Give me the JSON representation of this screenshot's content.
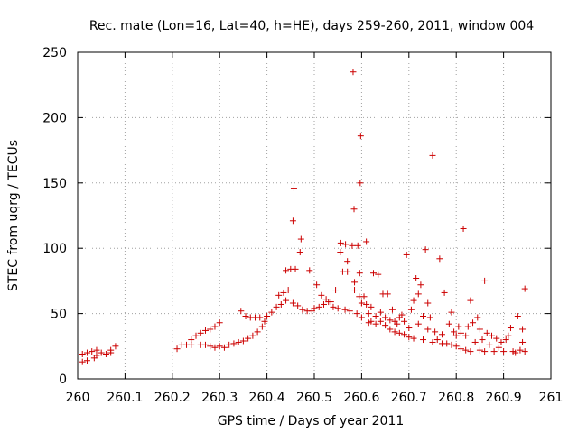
{
  "chart_data": {
    "type": "scatter",
    "title": "Rec. mate (Lon=16, Lat=40, h=HE), days 259-260, 2011, window 004",
    "xlabel": "GPS time / Days of year 2011",
    "ylabel": "STEC from uqrg / TECUs",
    "xlim": [
      260,
      261
    ],
    "ylim": [
      0,
      250
    ],
    "xticks": [
      260,
      260.1,
      260.2,
      260.3,
      260.4,
      260.5,
      260.6,
      260.7,
      260.8,
      260.9,
      261
    ],
    "xtick_labels": [
      "260",
      "260.1",
      "260.2",
      "260.3",
      "260.4",
      "260.5",
      "260.6",
      "260.7",
      "260.8",
      "260.9",
      "261"
    ],
    "yticks": [
      0,
      50,
      100,
      150,
      200,
      250
    ],
    "ytick_labels": [
      "0",
      "50",
      "100",
      "150",
      "200",
      "250"
    ],
    "grid": true,
    "marker": "+",
    "marker_color": "#cc0000",
    "series": [
      {
        "name": "STEC",
        "points": [
          [
            260.01,
            19
          ],
          [
            260.01,
            13
          ],
          [
            260.02,
            20
          ],
          [
            260.02,
            14
          ],
          [
            260.03,
            21
          ],
          [
            260.035,
            16
          ],
          [
            260.04,
            22
          ],
          [
            260.04,
            18
          ],
          [
            260.05,
            20
          ],
          [
            260.06,
            19
          ],
          [
            260.07,
            22
          ],
          [
            260.07,
            20
          ],
          [
            260.08,
            25
          ],
          [
            260.21,
            23
          ],
          [
            260.22,
            26
          ],
          [
            260.23,
            26
          ],
          [
            260.24,
            26
          ],
          [
            260.24,
            30
          ],
          [
            260.25,
            33
          ],
          [
            260.26,
            26
          ],
          [
            260.26,
            35
          ],
          [
            260.27,
            37
          ],
          [
            260.27,
            26
          ],
          [
            260.28,
            25
          ],
          [
            260.28,
            38
          ],
          [
            260.29,
            24
          ],
          [
            260.29,
            40
          ],
          [
            260.3,
            43
          ],
          [
            260.3,
            25
          ],
          [
            260.31,
            24
          ],
          [
            260.32,
            26
          ],
          [
            260.33,
            27
          ],
          [
            260.34,
            28
          ],
          [
            260.345,
            52
          ],
          [
            260.35,
            29
          ],
          [
            260.355,
            48
          ],
          [
            260.36,
            31
          ],
          [
            260.365,
            47
          ],
          [
            260.37,
            33
          ],
          [
            260.375,
            47
          ],
          [
            260.38,
            36
          ],
          [
            260.385,
            47
          ],
          [
            260.39,
            40
          ],
          [
            260.395,
            44
          ],
          [
            260.4,
            48
          ],
          [
            260.41,
            51
          ],
          [
            260.42,
            55
          ],
          [
            260.425,
            64
          ],
          [
            260.43,
            57
          ],
          [
            260.435,
            66
          ],
          [
            260.44,
            60
          ],
          [
            260.44,
            83
          ],
          [
            260.445,
            68
          ],
          [
            260.45,
            84
          ],
          [
            260.455,
            58
          ],
          [
            260.455,
            121
          ],
          [
            260.457,
            146
          ],
          [
            260.46,
            84
          ],
          [
            260.465,
            56
          ],
          [
            260.47,
            97
          ],
          [
            260.472,
            107
          ],
          [
            260.475,
            53
          ],
          [
            260.485,
            52
          ],
          [
            260.49,
            83
          ],
          [
            260.495,
            52
          ],
          [
            260.5,
            54
          ],
          [
            260.505,
            72
          ],
          [
            260.51,
            55
          ],
          [
            260.515,
            64
          ],
          [
            260.52,
            57
          ],
          [
            260.525,
            61
          ],
          [
            260.53,
            59
          ],
          [
            260.535,
            59
          ],
          [
            260.54,
            55
          ],
          [
            260.545,
            68
          ],
          [
            260.55,
            54
          ],
          [
            260.555,
            97
          ],
          [
            260.556,
            104
          ],
          [
            260.56,
            82
          ],
          [
            260.565,
            53
          ],
          [
            260.566,
            103
          ],
          [
            260.57,
            82
          ],
          [
            260.57,
            90
          ],
          [
            260.575,
            52
          ],
          [
            260.58,
            102
          ],
          [
            260.582,
            235
          ],
          [
            260.584,
            130
          ],
          [
            260.585,
            74
          ],
          [
            260.585,
            68
          ],
          [
            260.59,
            50
          ],
          [
            260.592,
            102
          ],
          [
            260.595,
            63
          ],
          [
            260.596,
            81
          ],
          [
            260.597,
            150
          ],
          [
            260.598,
            186
          ],
          [
            260.6,
            58
          ],
          [
            260.6,
            47
          ],
          [
            260.605,
            63
          ],
          [
            260.61,
            105
          ],
          [
            260.61,
            57
          ],
          [
            260.615,
            43
          ],
          [
            260.615,
            50
          ],
          [
            260.62,
            44
          ],
          [
            260.62,
            55
          ],
          [
            260.625,
            81
          ],
          [
            260.63,
            42
          ],
          [
            260.63,
            48
          ],
          [
            260.635,
            80
          ],
          [
            260.64,
            44
          ],
          [
            260.64,
            51
          ],
          [
            260.645,
            65
          ],
          [
            260.65,
            41
          ],
          [
            260.65,
            47
          ],
          [
            260.655,
            65
          ],
          [
            260.66,
            38
          ],
          [
            260.66,
            45
          ],
          [
            260.665,
            53
          ],
          [
            260.67,
            36
          ],
          [
            260.67,
            44
          ],
          [
            260.675,
            42
          ],
          [
            260.68,
            35
          ],
          [
            260.68,
            47
          ],
          [
            260.685,
            49
          ],
          [
            260.69,
            34
          ],
          [
            260.69,
            44
          ],
          [
            260.695,
            95
          ],
          [
            260.7,
            32
          ],
          [
            260.7,
            39
          ],
          [
            260.705,
            53
          ],
          [
            260.71,
            31
          ],
          [
            260.71,
            60
          ],
          [
            260.715,
            77
          ],
          [
            260.72,
            42
          ],
          [
            260.72,
            65
          ],
          [
            260.725,
            72
          ],
          [
            260.73,
            30
          ],
          [
            260.73,
            48
          ],
          [
            260.735,
            99
          ],
          [
            260.74,
            38
          ],
          [
            260.74,
            58
          ],
          [
            260.745,
            47
          ],
          [
            260.75,
            28
          ],
          [
            260.75,
            171
          ],
          [
            260.755,
            36
          ],
          [
            260.76,
            30
          ],
          [
            260.765,
            92
          ],
          [
            260.77,
            34
          ],
          [
            260.77,
            27
          ],
          [
            260.775,
            66
          ],
          [
            260.78,
            27
          ],
          [
            260.785,
            42
          ],
          [
            260.79,
            26
          ],
          [
            260.79,
            51
          ],
          [
            260.795,
            36
          ],
          [
            260.8,
            25
          ],
          [
            260.8,
            33
          ],
          [
            260.805,
            40
          ],
          [
            260.81,
            23
          ],
          [
            260.81,
            35
          ],
          [
            260.815,
            115
          ],
          [
            260.82,
            22
          ],
          [
            260.82,
            33
          ],
          [
            260.825,
            40
          ],
          [
            260.83,
            21
          ],
          [
            260.83,
            60
          ],
          [
            260.835,
            43
          ],
          [
            260.84,
            28
          ],
          [
            260.845,
            47
          ],
          [
            260.85,
            22
          ],
          [
            260.85,
            38
          ],
          [
            260.855,
            30
          ],
          [
            260.86,
            75
          ],
          [
            260.86,
            21
          ],
          [
            260.865,
            35
          ],
          [
            260.87,
            26
          ],
          [
            260.875,
            33
          ],
          [
            260.88,
            21
          ],
          [
            260.885,
            31
          ],
          [
            260.89,
            24
          ],
          [
            260.895,
            28
          ],
          [
            260.9,
            21
          ],
          [
            260.905,
            30
          ],
          [
            260.91,
            33
          ],
          [
            260.915,
            39
          ],
          [
            260.92,
            21
          ],
          [
            260.925,
            20
          ],
          [
            260.93,
            48
          ],
          [
            260.935,
            22
          ],
          [
            260.94,
            38
          ],
          [
            260.94,
            28
          ],
          [
            260.945,
            69
          ],
          [
            260.945,
            21
          ]
        ]
      }
    ]
  }
}
